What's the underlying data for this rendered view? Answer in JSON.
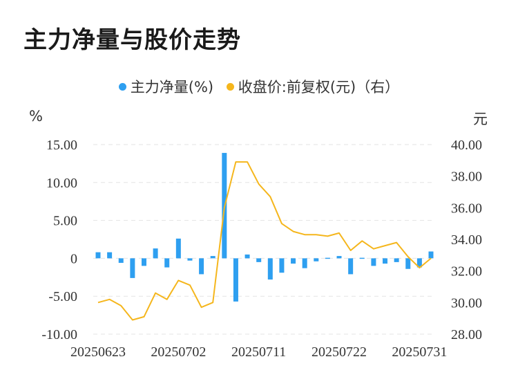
{
  "title": "主力净量与股价走势",
  "legend": {
    "net": "主力净量(%)",
    "price": "收盘价:前复权(元)（右）"
  },
  "units": {
    "left": "%",
    "right": "元"
  },
  "colors": {
    "net": "#2e9ff0",
    "price": "#f5b61c",
    "grid": "#e3e3e3"
  },
  "chart_data": {
    "type": "bar",
    "x_tick_labels": [
      "20250623",
      "20250702",
      "20250711",
      "20250722",
      "20250731"
    ],
    "y_left": {
      "label": "%",
      "lim": [
        -10,
        15
      ],
      "ticks": [
        "15.00",
        "10.00",
        "5.00",
        "0",
        "-5.00",
        "-10.00"
      ]
    },
    "y_right": {
      "label": "元",
      "lim": [
        28,
        40
      ],
      "ticks": [
        "40.00",
        "38.00",
        "36.00",
        "34.00",
        "32.00",
        "30.00",
        "28.00"
      ]
    },
    "series": [
      {
        "name": "主力净量(%)",
        "type": "bar",
        "axis": "left",
        "values": [
          0.8,
          0.8,
          -0.6,
          -2.6,
          -1.0,
          1.3,
          -1.2,
          2.6,
          -0.3,
          -2.1,
          0.3,
          13.9,
          -5.7,
          0.5,
          -0.5,
          -2.8,
          -1.9,
          -0.7,
          -1.3,
          -0.4,
          0.0,
          0.3,
          -2.1,
          0.0,
          -1.0,
          -0.7,
          -0.5,
          -1.4,
          -1.2,
          0.9
        ]
      },
      {
        "name": "收盘价:前复权(元)（右）",
        "type": "line",
        "axis": "right",
        "values": [
          30.0,
          30.2,
          29.8,
          28.9,
          29.1,
          30.6,
          30.2,
          31.4,
          31.1,
          29.7,
          30.0,
          36.0,
          38.9,
          38.9,
          37.5,
          36.7,
          35.0,
          34.5,
          34.3,
          34.3,
          34.2,
          34.4,
          33.3,
          33.9,
          33.4,
          33.6,
          33.8,
          32.9,
          32.2,
          32.8
        ]
      }
    ]
  }
}
